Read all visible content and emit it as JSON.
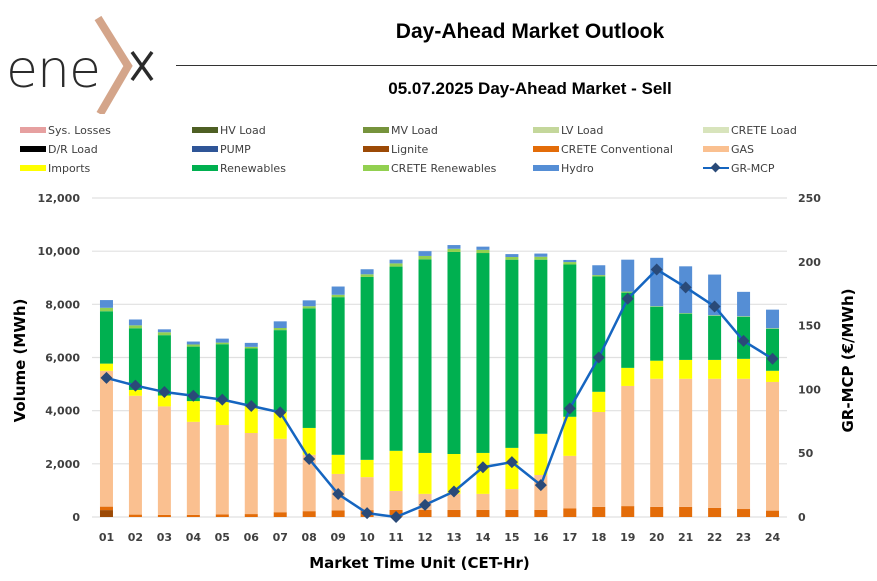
{
  "header": {
    "logo_text": "ene",
    "title": "Day-Ahead Market Outlook",
    "subtitle": "05.07.2025  Day-Ahead Market - Sell"
  },
  "colors": {
    "Sys. Losses": "#e6a0a0",
    "HV Load": "#4e5f23",
    "MV Load": "#76933c",
    "LV Load": "#c4d79b",
    "CRETE Load": "#d8e4bc",
    "D/R Load": "#000000",
    "PUMP": "#2f5597",
    "Lignite": "#9c4a06",
    "CRETE Conventional": "#e36c09",
    "GAS": "#fac090",
    "Imports": "#ffff00",
    "Renewables": "#00b050",
    "CRETE Renewables": "#92d050",
    "Hydro": "#558ed5",
    "GR-MCP": "#1565c0",
    "GR-MCP-marker": "#2a4a78"
  },
  "chart_data": {
    "type": "bar",
    "stacked": true,
    "title": "05.07.2025  Day-Ahead Market - Sell",
    "xlabel": "Market Time Unit (CET-Hr)",
    "ylabel": "Volume (MWh)",
    "y2label": "GR-MCP (€/MWh)",
    "ylim": [
      0,
      12000
    ],
    "y2lim": [
      0,
      250
    ],
    "yticks": [
      "0",
      "2,000",
      "4,000",
      "6,000",
      "8,000",
      "10,000",
      "12,000"
    ],
    "y2ticks": [
      "0",
      "50",
      "100",
      "150",
      "200",
      "250"
    ],
    "grid": true,
    "legend_position": "top",
    "categories": [
      "01",
      "02",
      "03",
      "04",
      "05",
      "06",
      "07",
      "08",
      "09",
      "10",
      "11",
      "12",
      "13",
      "14",
      "15",
      "16",
      "17",
      "18",
      "19",
      "20",
      "21",
      "22",
      "23",
      "24"
    ],
    "legend": [
      "Sys. Losses",
      "HV Load",
      "MV Load",
      "LV Load",
      "CRETE Load",
      "D/R Load",
      "PUMP",
      "Lignite",
      "CRETE Conventional",
      "GAS",
      "Imports",
      "Renewables",
      "CRETE Renewables",
      "Hydro",
      "GR-MCP"
    ],
    "series": [
      {
        "name": "Sys. Losses",
        "values": [
          0,
          0,
          0,
          0,
          0,
          0,
          0,
          0,
          0,
          0,
          0,
          0,
          0,
          0,
          0,
          0,
          0,
          0,
          0,
          0,
          0,
          0,
          0,
          0
        ]
      },
      {
        "name": "HV Load",
        "values": [
          0,
          0,
          0,
          0,
          0,
          0,
          0,
          0,
          0,
          0,
          0,
          0,
          0,
          0,
          0,
          0,
          0,
          0,
          0,
          0,
          0,
          0,
          0,
          0
        ]
      },
      {
        "name": "MV Load",
        "values": [
          0,
          0,
          0,
          0,
          0,
          0,
          0,
          0,
          0,
          0,
          0,
          0,
          0,
          0,
          0,
          0,
          0,
          0,
          0,
          0,
          0,
          0,
          0,
          0
        ]
      },
      {
        "name": "LV Load",
        "values": [
          0,
          0,
          0,
          0,
          0,
          0,
          0,
          0,
          0,
          0,
          0,
          0,
          0,
          0,
          0,
          0,
          0,
          0,
          0,
          0,
          0,
          0,
          0,
          0
        ]
      },
      {
        "name": "CRETE Load",
        "values": [
          0,
          0,
          0,
          0,
          0,
          0,
          0,
          0,
          0,
          0,
          0,
          0,
          0,
          0,
          0,
          0,
          0,
          0,
          0,
          0,
          0,
          0,
          0,
          0
        ]
      },
      {
        "name": "D/R Load",
        "values": [
          0,
          0,
          0,
          0,
          0,
          0,
          0,
          0,
          0,
          0,
          0,
          0,
          0,
          0,
          0,
          0,
          0,
          0,
          0,
          0,
          0,
          0,
          0,
          0
        ]
      },
      {
        "name": "PUMP",
        "values": [
          0,
          0,
          0,
          0,
          0,
          0,
          0,
          0,
          0,
          0,
          0,
          0,
          0,
          0,
          0,
          0,
          0,
          0,
          0,
          0,
          0,
          0,
          0,
          0
        ]
      },
      {
        "name": "Lignite",
        "values": [
          260,
          0,
          0,
          0,
          0,
          0,
          0,
          0,
          0,
          0,
          0,
          0,
          0,
          0,
          0,
          0,
          0,
          0,
          0,
          0,
          0,
          0,
          0,
          0
        ]
      },
      {
        "name": "CRETE Conventional",
        "values": [
          130,
          90,
          80,
          80,
          100,
          110,
          180,
          220,
          250,
          260,
          270,
          270,
          270,
          270,
          270,
          270,
          320,
          380,
          410,
          380,
          380,
          340,
          300,
          240
        ]
      },
      {
        "name": "GAS",
        "values": [
          5110,
          4470,
          4080,
          3500,
          3360,
          3050,
          2760,
          2120,
          1370,
          1240,
          710,
          600,
          600,
          600,
          780,
          1310,
          1980,
          3570,
          4520,
          4820,
          4820,
          4860,
          4900,
          4840
        ]
      },
      {
        "name": "Imports",
        "values": [
          270,
          220,
          410,
          780,
          880,
          1000,
          1020,
          1010,
          720,
          650,
          1510,
          1540,
          1500,
          1540,
          1550,
          1550,
          1470,
          760,
          680,
          680,
          710,
          710,
          750,
          420
        ]
      },
      {
        "name": "Renewables",
        "values": [
          1970,
          2320,
          2270,
          2050,
          2160,
          2180,
          3070,
          4500,
          5930,
          6880,
          6930,
          7280,
          7600,
          7520,
          7080,
          6550,
          5730,
          4340,
          2830,
          2030,
          1740,
          1660,
          1580,
          1580
        ]
      },
      {
        "name": "CRETE Renewables",
        "values": [
          130,
          110,
          110,
          80,
          60,
          60,
          80,
          80,
          90,
          100,
          120,
          130,
          120,
          120,
          100,
          110,
          90,
          50,
          40,
          20,
          20,
          20,
          20,
          20
        ]
      },
      {
        "name": "Hydro",
        "values": [
          290,
          220,
          110,
          110,
          150,
          150,
          250,
          220,
          310,
          190,
          140,
          180,
          140,
          120,
          110,
          120,
          80,
          370,
          1200,
          1820,
          1760,
          1530,
          920,
          700
        ]
      },
      {
        "name": "GR-MCP",
        "axis": "right",
        "type": "line",
        "values": [
          109,
          103,
          98,
          95,
          92,
          87,
          82,
          45.5,
          18,
          3,
          0,
          9.5,
          20,
          39,
          43,
          25,
          85,
          125,
          171,
          194,
          180,
          165,
          138,
          124
        ]
      }
    ]
  }
}
